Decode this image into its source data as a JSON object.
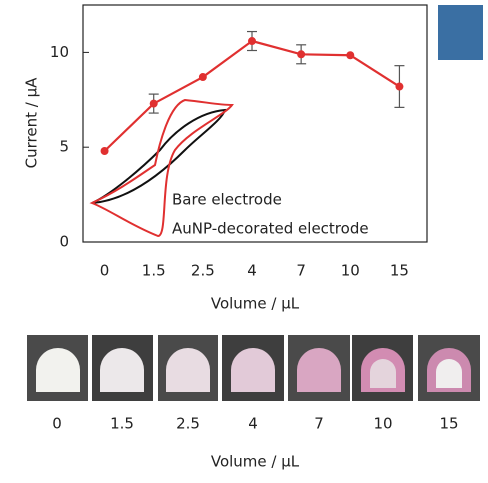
{
  "chart_data": {
    "type": "line",
    "ylabel": "Current / µA",
    "xlabel": "Volume / µL",
    "categories": [
      "0",
      "1.5",
      "2.5",
      "4",
      "7",
      "10",
      "15"
    ],
    "series": [
      {
        "name": "Current",
        "color": "#e03030",
        "values": [
          4.8,
          7.3,
          8.7,
          10.6,
          9.9,
          9.85,
          8.2
        ],
        "errors": [
          0,
          0.5,
          0,
          0.5,
          0.5,
          0,
          1.1
        ]
      }
    ],
    "ylim": [
      0,
      12.5
    ],
    "yticks": [
      0,
      5,
      10
    ],
    "inset_labels": [
      {
        "text": "Bare electrode",
        "color": "#111111"
      },
      {
        "text": "AuNP-decorated electrode",
        "color": "#e03030"
      }
    ]
  },
  "photos": {
    "labels": [
      "0",
      "1.5",
      "2.5",
      "4",
      "7",
      "10",
      "15"
    ],
    "xlabel": "Volume / µL"
  }
}
